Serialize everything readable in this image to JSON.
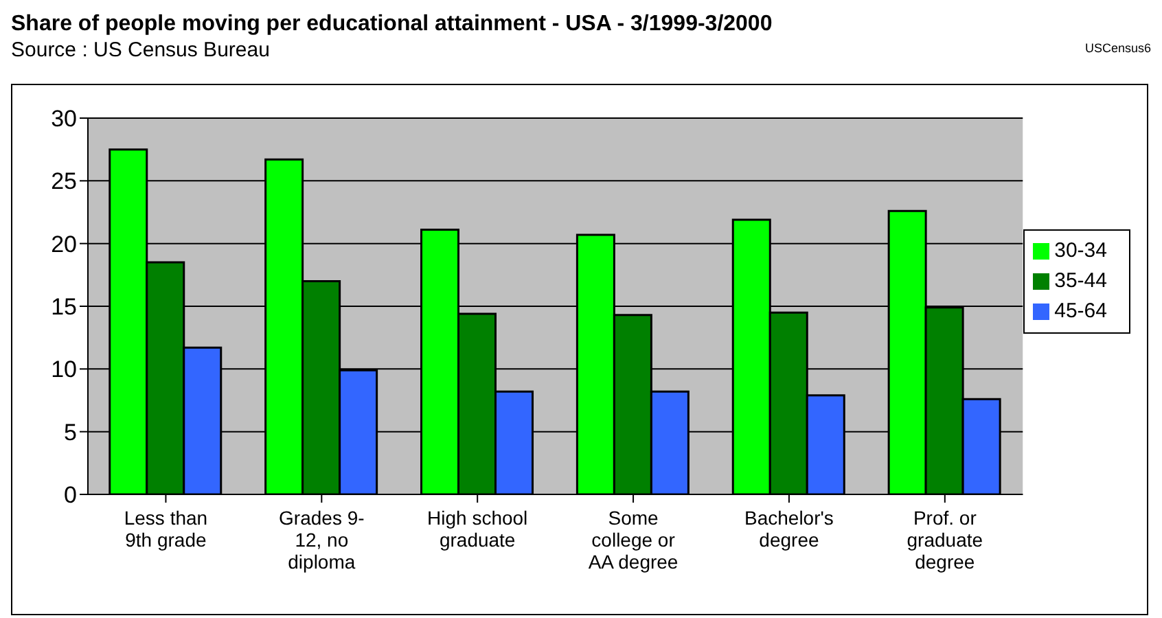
{
  "chart_data": {
    "type": "bar",
    "title": "Share of people moving per educational attainment - USA - 3/1999-3/2000",
    "subtitle": "Source : US Census Bureau",
    "annotations": [
      "USCensus6"
    ],
    "categories": [
      "Less than 9th grade",
      "Grades 9-12, no diploma",
      "High school graduate",
      "Some college or AA degree",
      "Bachelor's degree",
      "Prof. or graduate degree"
    ],
    "series": [
      {
        "name": "30-34",
        "color": "#00ff00",
        "values": [
          27.5,
          26.7,
          21.1,
          20.7,
          21.9,
          22.6
        ]
      },
      {
        "name": "35-44",
        "color": "#008000",
        "values": [
          18.5,
          17.0,
          14.4,
          14.3,
          14.5,
          14.9
        ]
      },
      {
        "name": "45-64",
        "color": "#3366ff",
        "values": [
          11.7,
          9.9,
          8.2,
          8.2,
          7.9,
          7.6
        ]
      }
    ],
    "ylim": [
      0,
      30
    ],
    "yticks": [
      0,
      5,
      10,
      15,
      20,
      25,
      30
    ],
    "grid": "y",
    "legend": "right"
  }
}
